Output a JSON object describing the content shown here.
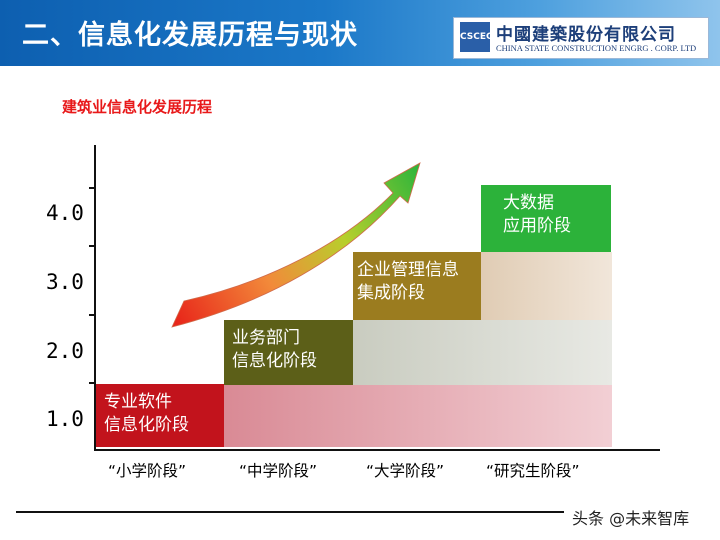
{
  "header": {
    "title": "二、信息化发展历程与现状",
    "logo_mark": "CSCEC",
    "logo_cn": "中國建築股份有限公司",
    "logo_en": "CHINA STATE CONSTRUCTION ENGRG . CORP. LTD"
  },
  "subtitle": "建筑业信息化发展历程",
  "y_labels": [
    "4.0",
    "3.0",
    "2.0",
    "1.0"
  ],
  "stages": [
    {
      "line1": "专业软件",
      "line2": "信息化阶段",
      "color": "#c2131c"
    },
    {
      "line1": "业务部门",
      "line2": "信息化阶段",
      "color": "#5c5f18"
    },
    {
      "line1": "企业管理信息",
      "line2": "集成阶段",
      "color": "#9b7c1f"
    },
    {
      "line1": "大数据",
      "line2": "应用阶段",
      "color": "#2cb23a"
    }
  ],
  "x_labels": [
    "“小学阶段”",
    "“中学阶段”",
    "“大学阶段”",
    "“研究生阶段”"
  ],
  "watermark": "头条 @未来智库"
}
